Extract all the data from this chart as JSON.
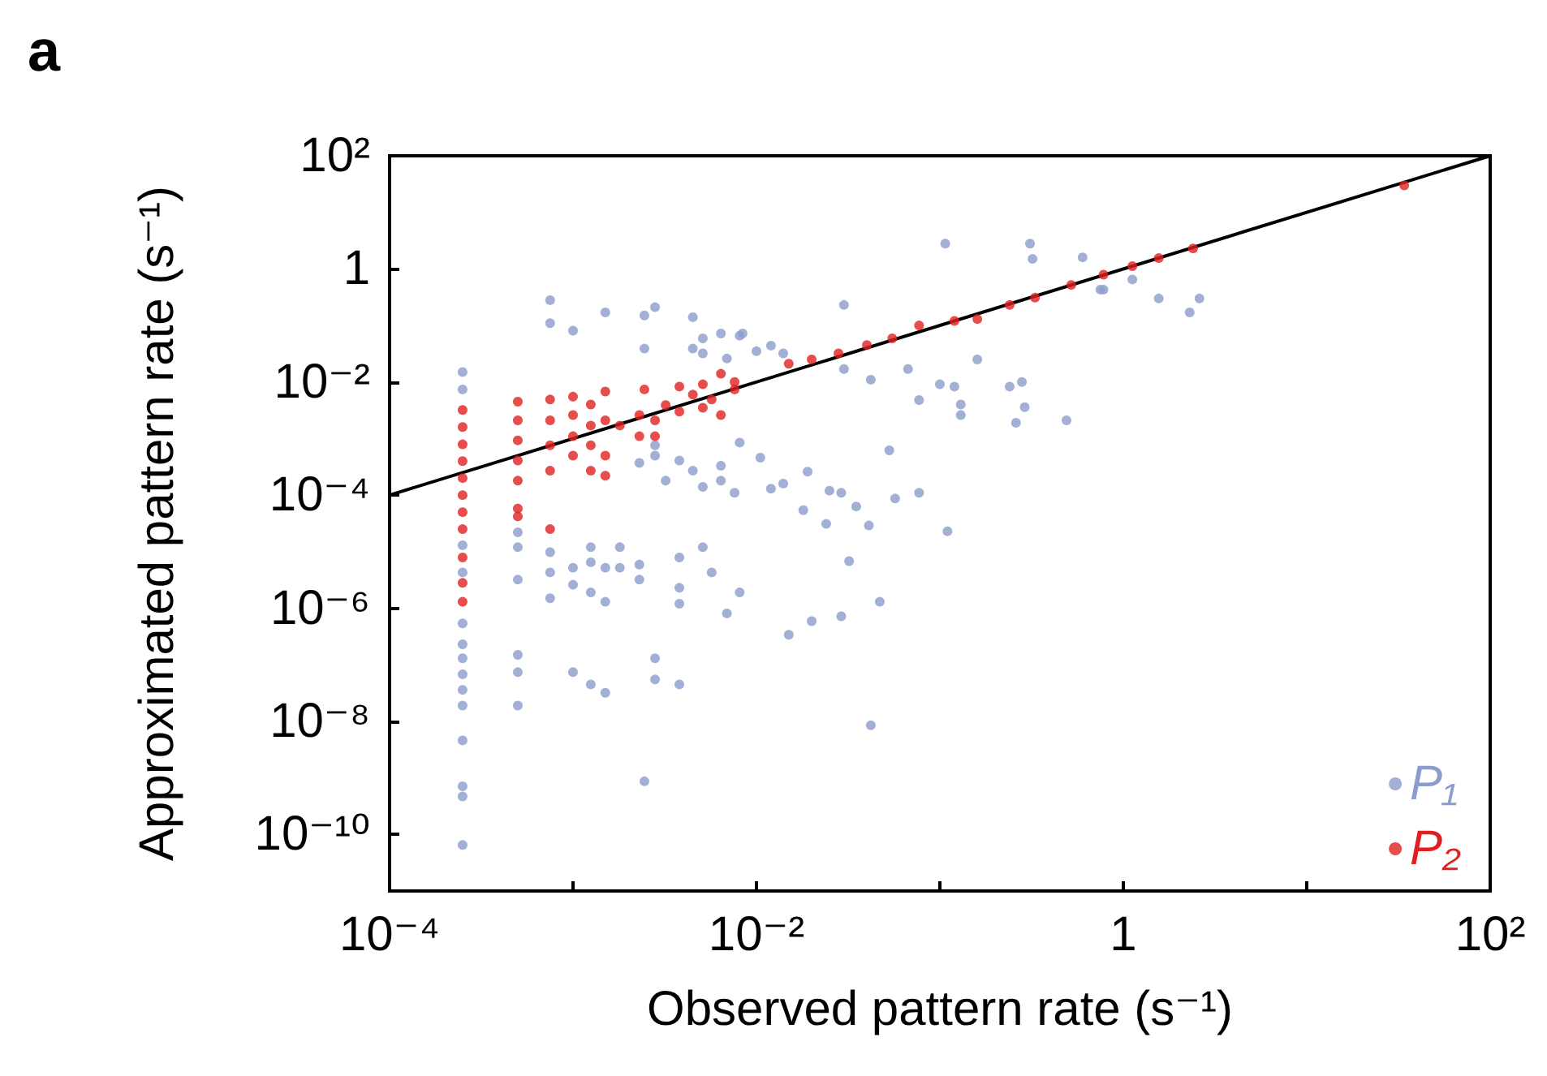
{
  "chart_data": {
    "type": "scatter",
    "title": "a",
    "xlabel": "Observed pattern rate (s⁻¹)",
    "ylabel": "Approximated pattern rate (s⁻¹)",
    "log": "xy",
    "grid": false,
    "legend": "bottom right",
    "xlim": [
      0.0001,
      100
    ],
    "ylim": [
      1e-11,
      100
    ],
    "xticks": [
      {
        "value": 0.0001,
        "label": "10⁻⁴"
      },
      {
        "value": 0.001,
        "label": null
      },
      {
        "value": 0.01,
        "label": "10⁻²"
      },
      {
        "value": 0.1,
        "label": null
      },
      1,
      {
        "value": 10,
        "label": null
      },
      {
        "value": 100,
        "label": "10²"
      }
    ],
    "yticks": [
      {
        "value": 1e-10,
        "label": "10⁻¹⁰"
      },
      {
        "value": 1e-08,
        "label": "10⁻⁸"
      },
      {
        "value": 1e-06,
        "label": "10⁻⁶"
      },
      {
        "value": 0.0001,
        "label": "10⁻⁴"
      },
      {
        "value": 0.01,
        "label": "10⁻²"
      },
      1,
      {
        "value": 100,
        "label": "10²"
      }
    ],
    "series": [
      {
        "name": "P₁",
        "color": "#8c9ccc",
        "marker": "circle",
        "x": [
          0.00025,
          0.00025,
          0.00025,
          0.00025,
          0.00025,
          0.00025,
          0.00025,
          0.00025,
          0.00025,
          0.00025,
          0.00025,
          0.00025,
          0.00025,
          0.00025,
          0.0005,
          0.0005,
          0.0005,
          0.0005,
          0.0005,
          0.0005,
          0.00075,
          0.00075,
          0.00075,
          0.00075,
          0.00075,
          0.001,
          0.001,
          0.001,
          0.001,
          0.00125,
          0.00125,
          0.00125,
          0.00125,
          0.0015,
          0.0015,
          0.0015,
          0.0015,
          0.0018,
          0.0018,
          0.0023,
          0.0023,
          0.0023,
          0.00245,
          0.00245,
          0.00245,
          0.0028,
          0.0028,
          0.0028,
          0.0028,
          0.0028,
          0.0032,
          0.0038,
          0.0038,
          0.0038,
          0.0038,
          0.0038,
          0.0045,
          0.0045,
          0.0045,
          0.0051,
          0.0051,
          0.0051,
          0.0051,
          0.0057,
          0.0064,
          0.0064,
          0.0064,
          0.0069,
          0.0069,
          0.0076,
          0.0081,
          0.0081,
          0.0081,
          0.107,
          0.31,
          0.32,
          0.6,
          0.75,
          0.03,
          0.0084,
          0.01,
          0.012,
          0.014,
          0.03,
          0.042,
          0.067,
          0.1,
          0.12,
          0.077,
          0.13,
          0.13,
          0.16,
          0.24,
          0.28,
          0.29,
          0.26,
          0.49,
          0.0105,
          0.019,
          0.014,
          0.012,
          0.025,
          0.029,
          0.035,
          0.018,
          0.024,
          0.041,
          0.053,
          0.057,
          0.077,
          0.11,
          0.032,
          0.047,
          0.015,
          0.02,
          0.029,
          0.042,
          0.78,
          1.12,
          1.56,
          2.3,
          2.6
        ],
        "values": [
          0.015,
          0.0074,
          1.3e-05,
          4.3e-06,
          5.4e-07,
          2.3e-07,
          1.3e-07,
          6.8e-08,
          3.6e-08,
          1.9e-08,
          4.6e-09,
          7.1e-10,
          4.7e-10,
          6.5e-11,
          2.2e-05,
          1.2e-05,
          3.2e-06,
          1.5e-07,
          7.4e-08,
          1.9e-08,
          0.28,
          0.11,
          9.8e-06,
          4.3e-06,
          1.5e-06,
          0.081,
          5.2e-06,
          2.6e-06,
          7.4e-08,
          1.2e-05,
          6.5e-06,
          1.9e-06,
          4.5e-08,
          0.17,
          5.2e-06,
          1.3e-06,
          3.2e-08,
          1.2e-05,
          5.2e-06,
          0.00037,
          5.9e-06,
          3.2e-06,
          0.15,
          0.039,
          8.7e-10,
          0.21,
          0.00076,
          0.0005,
          1.3e-07,
          5.5e-08,
          0.00018,
          0.00041,
          7.9e-06,
          2.3e-06,
          1.2e-06,
          4.5e-08,
          0.14,
          0.039,
          0.00027,
          0.059,
          0.032,
          0.00014,
          1.2e-05,
          4.3e-06,
          0.072,
          0.00033,
          0.00018,
          0.026,
          8.1e-07,
          0.00011,
          0.066,
          0.00085,
          1.9e-06,
          2.8,
          2.8,
          1.5,
          1.6,
          0.43,
          0.23,
          0.072,
          0.035,
          0.044,
          0.032,
          0.017,
          0.011,
          0.017,
          0.0091,
          0.0083,
          0.0048,
          0.004,
          0.0026,
          0.025,
          0.0083,
          0.01,
          0.0036,
          0.0019,
          0.0021,
          0.00046,
          0.00026,
          0.00016,
          0.00013,
          0.00012,
          0.00011,
          6.3e-05,
          5.4e-05,
          3.1e-05,
          2.9e-05,
          0.00062,
          8.7e-05,
          0.00011,
          2.3e-05,
          6.8e-06,
          1.3e-06,
          3.4e-07,
          5.9e-07,
          7.2e-07,
          8.5e-09,
          0.43,
          0.65,
          0.3,
          0.17,
          0.3
        ]
      },
      {
        "name": "P₂",
        "color": "#e02020",
        "marker": "circle",
        "x": [
          0.00025,
          0.00025,
          0.00025,
          0.00025,
          0.00025,
          0.00025,
          0.00025,
          0.00025,
          0.00025,
          0.00025,
          0.00025,
          0.0005,
          0.0005,
          0.0005,
          0.0005,
          0.0005,
          0.0005,
          0.0005,
          0.00075,
          0.00075,
          0.00075,
          0.00075,
          0.00075,
          0.001,
          0.001,
          0.001,
          0.001,
          0.00125,
          0.00125,
          0.00125,
          0.00125,
          0.0015,
          0.0015,
          0.0015,
          0.0015,
          0.0018,
          0.0023,
          0.0023,
          0.00245,
          0.0028,
          0.0028,
          0.0032,
          0.0038,
          0.0038,
          0.0045,
          0.0051,
          0.0051,
          0.0057,
          0.0064,
          0.0064,
          0.0076,
          0.0076,
          0.015,
          0.02,
          0.028,
          0.04,
          0.055,
          0.077,
          0.12,
          0.16,
          0.24,
          0.33,
          0.52,
          0.78,
          1.12,
          1.56,
          2.4,
          34
        ],
        "values": [
          0.0032,
          0.0016,
          0.00079,
          0.0004,
          0.0002,
          0.0001,
          5e-05,
          2.5e-05,
          7.9e-06,
          2.8e-06,
          1.3e-06,
          0.0045,
          0.0021,
          0.00093,
          0.00041,
          0.00018,
          5.8e-05,
          4.2e-05,
          0.0049,
          0.0021,
          0.00076,
          0.00027,
          2.5e-05,
          0.0055,
          0.0026,
          0.0011,
          0.0005,
          0.004,
          0.0017,
          0.00076,
          0.00027,
          0.0068,
          0.0021,
          0.0005,
          0.00022,
          0.0017,
          0.0026,
          0.0011,
          0.0074,
          0.0021,
          0.0011,
          0.0039,
          0.0083,
          0.003,
          0.006,
          0.0091,
          0.0035,
          0.0049,
          0.014,
          0.0026,
          0.01,
          0.0074,
          0.021,
          0.025,
          0.032,
          0.045,
          0.059,
          0.1,
          0.12,
          0.13,
          0.23,
          0.31,
          0.52,
          0.79,
          1.12,
          1.55,
          2.3,
          30
        ]
      },
      {
        "type": "line",
        "color": "#000000",
        "marker": "none",
        "line_style": "solid",
        "x": [
          0.0001,
          100
        ],
        "values": [
          0.0001,
          100
        ]
      }
    ]
  }
}
